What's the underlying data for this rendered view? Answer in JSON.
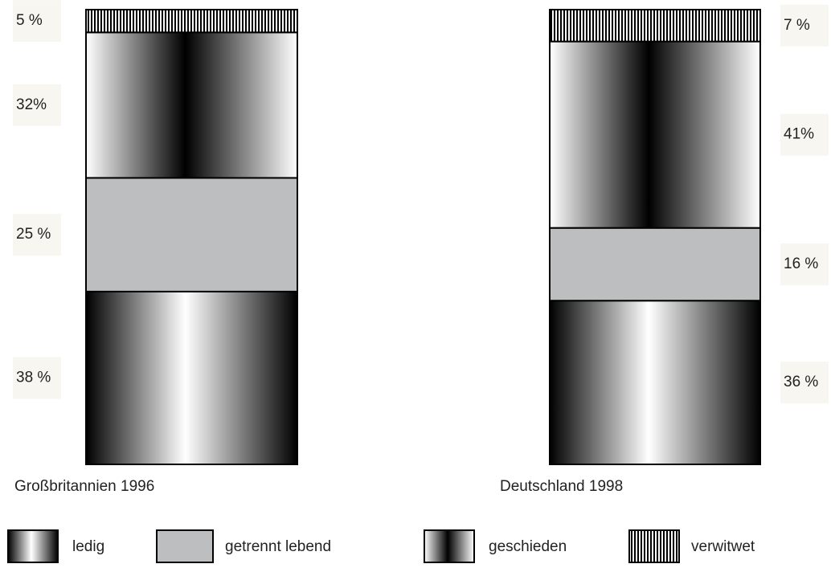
{
  "chart_data": {
    "type": "bar",
    "stacked": true,
    "categories": [
      "Großbritannien 1996",
      "Deutschland 1998"
    ],
    "series": [
      {
        "name": "ledig",
        "color": "#ffffff",
        "values": [
          38,
          36
        ],
        "value_labels": [
          "38 %",
          "36 %"
        ]
      },
      {
        "name": "getrennt lebend",
        "color": "#bcbec0",
        "values": [
          25,
          16
        ],
        "value_labels": [
          "25 %",
          "16 %"
        ]
      },
      {
        "name": "geschieden",
        "color": "#000000",
        "values": [
          32,
          41
        ],
        "value_labels": [
          "32%",
          "41%"
        ]
      },
      {
        "name": "verwitwet",
        "color": "#000000",
        "values": [
          5,
          7
        ],
        "value_labels": [
          "5 %",
          "7 %"
        ]
      }
    ]
  }
}
